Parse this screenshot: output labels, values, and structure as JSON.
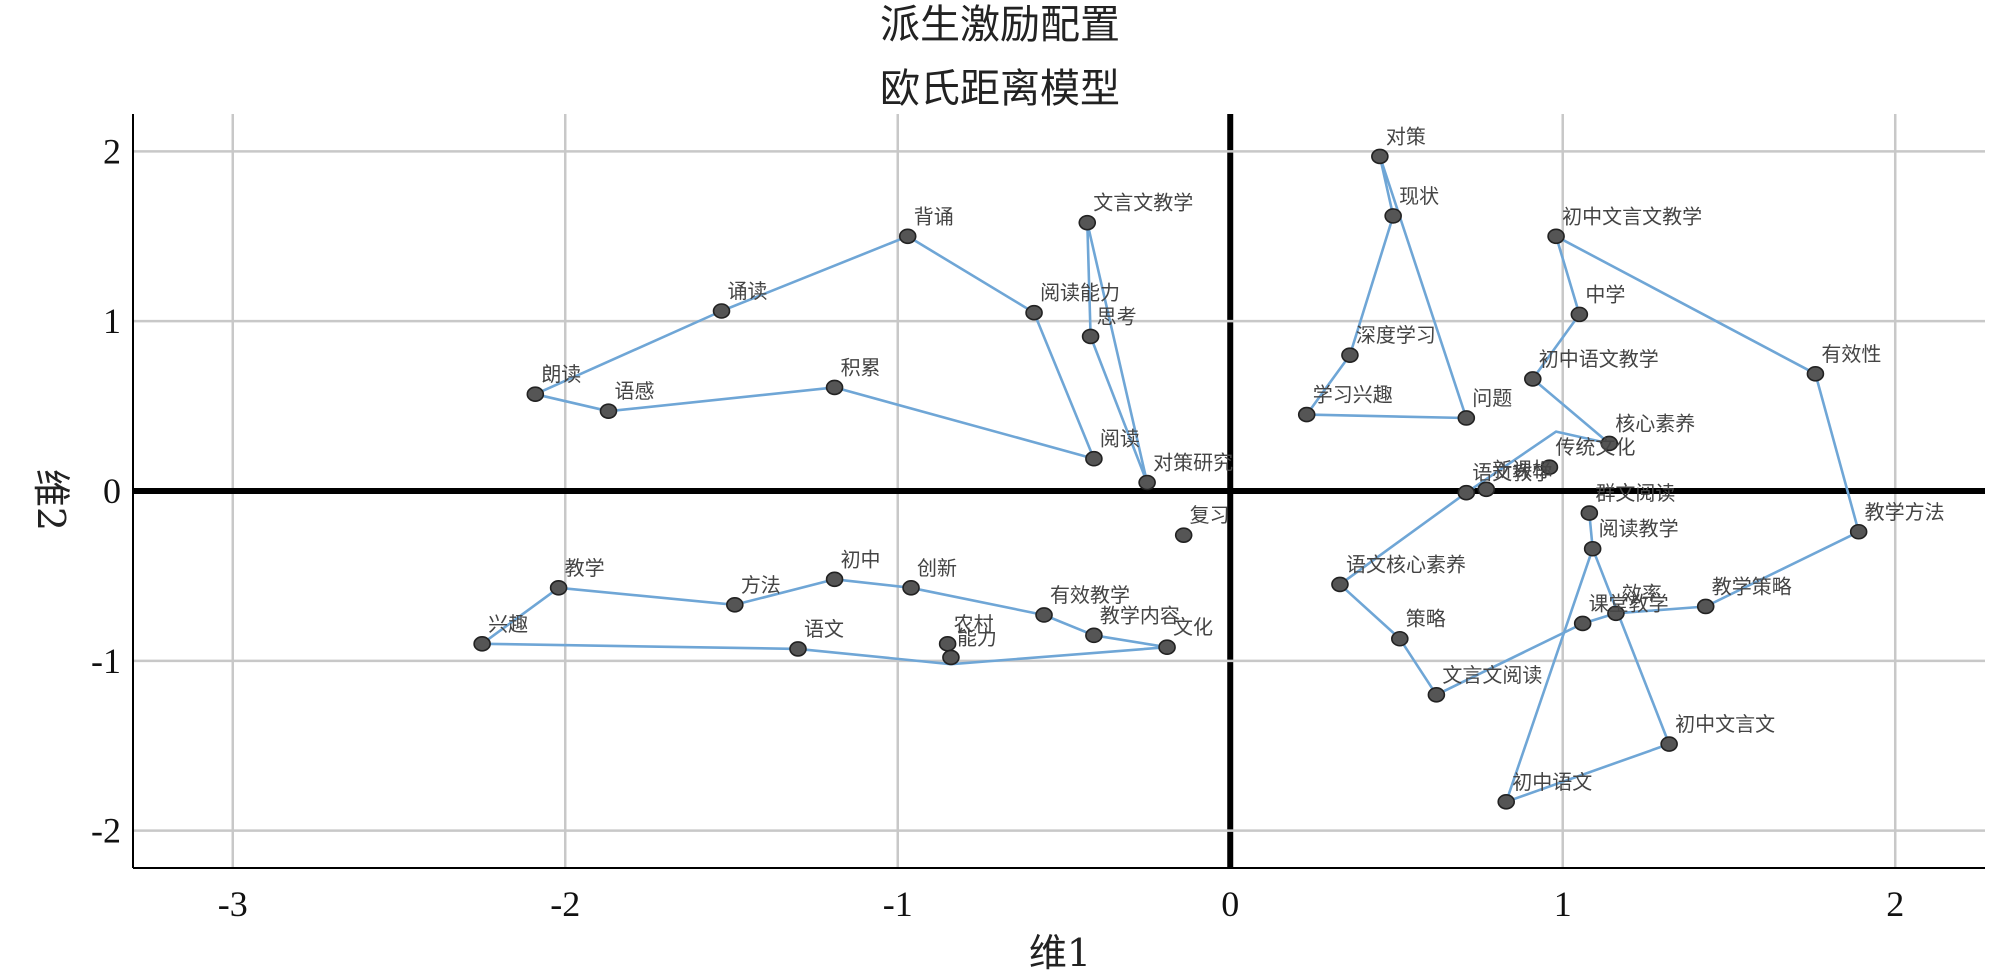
{
  "chart_data": {
    "type": "scatter",
    "title": "派生激励配置",
    "subtitle": "欧氏距离模型",
    "xlabel": "维1",
    "ylabel": "维2",
    "xlim": [
      -3.3,
      2.27
    ],
    "ylim": [
      -2.22,
      2.22
    ],
    "xticks": [
      -3,
      -2,
      -1,
      0,
      1,
      2
    ],
    "yticks": [
      -2,
      -1,
      0,
      1,
      2
    ],
    "grid": true,
    "point_color": "#555555",
    "line_color": "#6fa6d6",
    "points": [
      {
        "label": "对策",
        "x": 0.45,
        "y": 1.97
      },
      {
        "label": "现状",
        "x": 0.49,
        "y": 1.62
      },
      {
        "label": "文言文教学",
        "x": -0.43,
        "y": 1.58
      },
      {
        "label": "背诵",
        "x": -0.97,
        "y": 1.5
      },
      {
        "label": "初中文言文教学",
        "x": 0.98,
        "y": 1.5
      },
      {
        "label": "诵读",
        "x": -1.53,
        "y": 1.06
      },
      {
        "label": "阅读能力",
        "x": -0.59,
        "y": 1.05
      },
      {
        "label": "中学",
        "x": 1.05,
        "y": 1.04
      },
      {
        "label": "思考",
        "x": -0.42,
        "y": 0.91
      },
      {
        "label": "深度学习",
        "x": 0.36,
        "y": 0.8
      },
      {
        "label": "有效性",
        "x": 1.76,
        "y": 0.69
      },
      {
        "label": "初中语文教学",
        "x": 0.91,
        "y": 0.66
      },
      {
        "label": "积累",
        "x": -1.19,
        "y": 0.61
      },
      {
        "label": "朗读",
        "x": -2.09,
        "y": 0.57
      },
      {
        "label": "语感",
        "x": -1.87,
        "y": 0.47
      },
      {
        "label": "学习兴趣",
        "x": 0.23,
        "y": 0.45
      },
      {
        "label": "问题",
        "x": 0.71,
        "y": 0.43
      },
      {
        "label": "核心素养",
        "x": 1.14,
        "y": 0.28
      },
      {
        "label": "阅读",
        "x": -0.41,
        "y": 0.19
      },
      {
        "label": "传统文化",
        "x": 0.96,
        "y": 0.14
      },
      {
        "label": "对策研究",
        "x": -0.25,
        "y": 0.05
      },
      {
        "label": "新课标",
        "x": 0.77,
        "y": 0.01
      },
      {
        "label": "语文教学",
        "x": 0.71,
        "y": -0.01
      },
      {
        "label": "群文阅读",
        "x": 1.08,
        "y": -0.13
      },
      {
        "label": "教学方法",
        "x": 1.89,
        "y": -0.24
      },
      {
        "label": "复习",
        "x": -0.14,
        "y": -0.26
      },
      {
        "label": "阅读教学",
        "x": 1.09,
        "y": -0.34
      },
      {
        "label": "语文核心素养",
        "x": 0.33,
        "y": -0.55
      },
      {
        "label": "初中",
        "x": -1.19,
        "y": -0.52
      },
      {
        "label": "教学",
        "x": -2.02,
        "y": -0.57
      },
      {
        "label": "创新",
        "x": -0.96,
        "y": -0.57
      },
      {
        "label": "方法",
        "x": -1.49,
        "y": -0.67
      },
      {
        "label": "教学策略",
        "x": 1.43,
        "y": -0.68
      },
      {
        "label": "效率",
        "x": 1.16,
        "y": -0.72
      },
      {
        "label": "有效教学",
        "x": -0.56,
        "y": -0.73
      },
      {
        "label": "课堂教学",
        "x": 1.06,
        "y": -0.78
      },
      {
        "label": "教学内容",
        "x": -0.41,
        "y": -0.85
      },
      {
        "label": "策略",
        "x": 0.51,
        "y": -0.87
      },
      {
        "label": "兴趣",
        "x": -2.25,
        "y": -0.9
      },
      {
        "label": "农村",
        "x": -0.85,
        "y": -0.9
      },
      {
        "label": "文化",
        "x": -0.19,
        "y": -0.92
      },
      {
        "label": "语文",
        "x": -1.3,
        "y": -0.93
      },
      {
        "label": "能力",
        "x": -0.84,
        "y": -0.98
      },
      {
        "label": "文言文阅读",
        "x": 0.62,
        "y": -1.2
      },
      {
        "label": "初中文言文",
        "x": 1.32,
        "y": -1.49
      },
      {
        "label": "初中语文",
        "x": 0.83,
        "y": -1.83
      }
    ],
    "polylines": [
      [
        [
          -2.09,
          0.57
        ],
        [
          -1.53,
          1.06
        ],
        [
          -0.97,
          1.5
        ],
        [
          -0.59,
          1.05
        ],
        [
          -0.41,
          0.19
        ],
        [
          -1.19,
          0.61
        ],
        [
          -1.87,
          0.47
        ],
        [
          -2.09,
          0.57
        ]
      ],
      [
        [
          -0.43,
          1.58
        ],
        [
          -0.42,
          0.91
        ],
        [
          -0.25,
          0.05
        ],
        [
          -0.43,
          1.58
        ]
      ],
      [
        [
          0.45,
          1.97
        ],
        [
          0.71,
          0.43
        ],
        [
          0.23,
          0.45
        ],
        [
          0.36,
          0.8
        ],
        [
          0.49,
          1.62
        ],
        [
          0.45,
          1.97
        ]
      ],
      [
        [
          0.98,
          1.5
        ],
        [
          1.05,
          1.04
        ],
        [
          0.91,
          0.66
        ],
        [
          1.14,
          0.28
        ],
        [
          0.98,
          0.35
        ],
        [
          0.71,
          -0.01
        ]
      ],
      [
        [
          0.98,
          1.5
        ],
        [
          1.76,
          0.69
        ],
        [
          1.89,
          -0.24
        ],
        [
          1.43,
          -0.68
        ],
        [
          1.16,
          -0.72
        ],
        [
          1.06,
          -0.78
        ],
        [
          0.62,
          -1.2
        ],
        [
          0.51,
          -0.87
        ],
        [
          0.33,
          -0.55
        ],
        [
          0.71,
          -0.01
        ]
      ],
      [
        [
          1.08,
          -0.13
        ],
        [
          1.09,
          -0.34
        ],
        [
          1.32,
          -1.49
        ],
        [
          0.83,
          -1.83
        ],
        [
          1.09,
          -0.34
        ]
      ],
      [
        [
          -2.25,
          -0.9
        ],
        [
          -2.02,
          -0.57
        ],
        [
          -1.49,
          -0.67
        ],
        [
          -1.19,
          -0.52
        ],
        [
          -0.96,
          -0.57
        ],
        [
          -0.56,
          -0.73
        ],
        [
          -0.41,
          -0.85
        ],
        [
          -0.19,
          -0.92
        ],
        [
          -0.84,
          -1.02
        ],
        [
          -1.3,
          -0.93
        ],
        [
          -2.25,
          -0.9
        ]
      ]
    ]
  }
}
